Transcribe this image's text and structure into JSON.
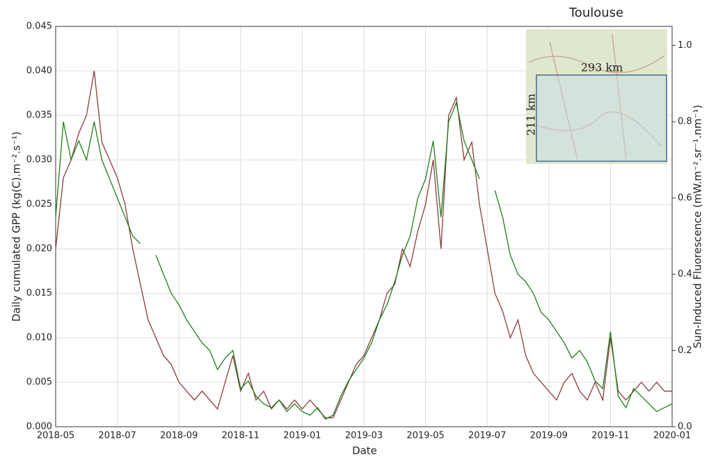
{
  "chart_data": {
    "type": "line",
    "x_label": "Date",
    "y_label": "Daily cumulated GPP (kg(C).m⁻².s⁻¹)",
    "y2_label": "Sun-Induced Fluorescence (mW.m⁻².sr⁻¹.nm⁻¹)",
    "x": [
      "2018-05",
      null,
      null,
      null,
      null,
      null,
      null,
      null,
      "2018-07",
      null,
      null,
      null,
      null,
      null,
      null,
      null,
      "2018-09",
      null,
      null,
      null,
      null,
      null,
      null,
      null,
      "2018-11",
      null,
      null,
      null,
      null,
      null,
      null,
      null,
      "2019-01",
      null,
      null,
      null,
      null,
      null,
      null,
      null,
      "2019-03",
      null,
      null,
      null,
      null,
      null,
      null,
      null,
      "2019-05",
      null,
      null,
      null,
      null,
      null,
      null,
      null,
      "2019-07",
      null,
      null,
      null,
      null,
      null,
      null,
      null,
      "2019-09",
      null,
      null,
      null,
      null,
      null,
      null,
      null,
      "2019-11",
      null,
      null,
      null,
      null,
      null,
      null,
      null,
      "2020-01"
    ],
    "ylim": [
      0,
      0.045
    ],
    "yticks": [
      {
        "value": 0,
        "label": "0.000"
      },
      {
        "value": 0.005,
        "label": "0.005"
      },
      {
        "value": 0.01,
        "label": "0.010"
      },
      {
        "value": 0.015,
        "label": "0.015"
      },
      {
        "value": 0.02,
        "label": "0.020"
      },
      {
        "value": 0.025,
        "label": "0.025"
      },
      {
        "value": 0.03,
        "label": "0.030"
      },
      {
        "value": 0.035,
        "label": "0.035"
      },
      {
        "value": 0.04,
        "label": "0.040"
      },
      {
        "value": 0.045,
        "label": "0.045"
      }
    ],
    "y2lim": [
      0,
      1.05
    ],
    "y2ticks": [
      {
        "value": 0,
        "label": "0.0"
      },
      0.2,
      0.4,
      0.6,
      0.8,
      {
        "value": 1,
        "label": "1.0"
      }
    ],
    "grid": true,
    "series": [
      {
        "color": "#8b3a3a",
        "values": [
          0.02,
          0.028,
          0.03,
          0.033,
          0.035,
          0.04,
          0.032,
          0.03,
          0.028,
          0.025,
          0.02,
          0.016,
          0.012,
          0.01,
          0.008,
          0.007,
          0.005,
          0.004,
          0.003,
          0.004,
          0.003,
          0.002,
          0.005,
          0.008,
          0.004,
          0.006,
          0.003,
          0.004,
          0.002,
          0.003,
          0.002,
          0.003,
          0.002,
          0.003,
          0.002,
          0.001,
          0.001,
          0.003,
          0.005,
          0.007,
          0.008,
          0.01,
          0.012,
          0.015,
          0.016,
          0.02,
          0.018,
          0.022,
          0.025,
          0.03,
          0.02,
          0.035,
          0.037,
          0.03,
          0.032,
          0.025,
          0.02,
          0.015,
          0.013,
          0.01,
          0.012,
          0.008,
          0.006,
          0.005,
          0.004,
          0.003,
          0.005,
          0.006,
          0.004,
          0.003,
          0.005,
          0.003,
          0.01,
          0.004,
          0.003,
          0.004,
          0.005,
          0.004,
          0.005,
          0.004,
          0.004
        ]
      },
      {
        "color": "#1a7f1a",
        "axis": "y2",
        "values": [
          0.55,
          0.8,
          0.7,
          0.75,
          0.7,
          0.8,
          0.7,
          0.65,
          0.6,
          0.55,
          0.5,
          0.48,
          null,
          0.45,
          0.4,
          0.35,
          0.32,
          0.28,
          0.25,
          0.22,
          0.2,
          0.15,
          0.18,
          0.2,
          0.1,
          0.12,
          0.08,
          0.06,
          0.05,
          0.07,
          0.04,
          0.06,
          0.04,
          0.03,
          0.05,
          0.02,
          0.03,
          0.08,
          0.12,
          0.15,
          0.18,
          0.22,
          0.28,
          0.32,
          0.38,
          0.45,
          0.5,
          0.6,
          0.65,
          0.75,
          0.55,
          0.8,
          0.85,
          0.75,
          0.7,
          0.65,
          null,
          0.62,
          0.55,
          0.45,
          0.4,
          0.38,
          0.35,
          0.3,
          0.28,
          0.25,
          0.22,
          0.18,
          0.2,
          0.17,
          0.12,
          0.1,
          0.25,
          0.08,
          0.05,
          0.1,
          0.08,
          0.06,
          0.04,
          0.05,
          0.06
        ]
      }
    ],
    "inset": {
      "title": "Toulouse",
      "width_label": "293 km",
      "height_label": "211 km"
    }
  }
}
